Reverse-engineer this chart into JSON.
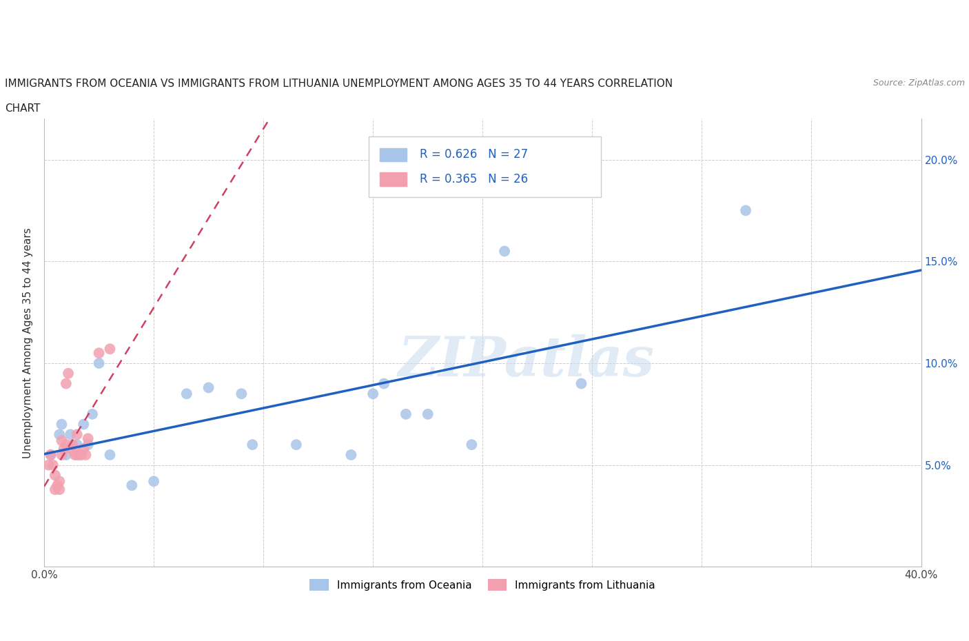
{
  "title_line1": "IMMIGRANTS FROM OCEANIA VS IMMIGRANTS FROM LITHUANIA UNEMPLOYMENT AMONG AGES 35 TO 44 YEARS CORRELATION",
  "title_line2": "CHART",
  "source": "Source: ZipAtlas.com",
  "ylabel": "Unemployment Among Ages 35 to 44 years",
  "xlim": [
    0.0,
    0.4
  ],
  "ylim": [
    0.0,
    0.22
  ],
  "xticks": [
    0.0,
    0.05,
    0.1,
    0.15,
    0.2,
    0.25,
    0.3,
    0.35,
    0.4
  ],
  "yticks": [
    0.0,
    0.05,
    0.1,
    0.15,
    0.2
  ],
  "oceania_color": "#a8c4e8",
  "lithuania_color": "#f2a0b0",
  "oceania_line_color": "#2060c0",
  "lithuania_line_color": "#d04060",
  "legend_text_color": "#2060c0",
  "oceania_r": 0.626,
  "oceania_n": 27,
  "lithuania_r": 0.365,
  "lithuania_n": 26,
  "watermark": "ZIPatlas",
  "oceania_x": [
    0.003,
    0.007,
    0.008,
    0.01,
    0.012,
    0.015,
    0.018,
    0.02,
    0.022,
    0.025,
    0.03,
    0.04,
    0.05,
    0.065,
    0.075,
    0.09,
    0.095,
    0.115,
    0.14,
    0.15,
    0.155,
    0.165,
    0.175,
    0.195,
    0.21,
    0.245,
    0.32
  ],
  "oceania_y": [
    0.055,
    0.065,
    0.07,
    0.055,
    0.065,
    0.06,
    0.07,
    0.06,
    0.075,
    0.1,
    0.055,
    0.04,
    0.042,
    0.085,
    0.088,
    0.085,
    0.06,
    0.06,
    0.055,
    0.085,
    0.09,
    0.075,
    0.075,
    0.06,
    0.155,
    0.09,
    0.175
  ],
  "lithuania_x": [
    0.002,
    0.003,
    0.004,
    0.005,
    0.005,
    0.006,
    0.007,
    0.007,
    0.008,
    0.008,
    0.009,
    0.01,
    0.01,
    0.011,
    0.012,
    0.013,
    0.014,
    0.015,
    0.015,
    0.016,
    0.017,
    0.018,
    0.019,
    0.02,
    0.025,
    0.03
  ],
  "lithuania_y": [
    0.05,
    0.055,
    0.05,
    0.045,
    0.038,
    0.04,
    0.038,
    0.042,
    0.055,
    0.062,
    0.058,
    0.06,
    0.09,
    0.095,
    0.058,
    0.06,
    0.055,
    0.055,
    0.065,
    0.055,
    0.055,
    0.058,
    0.055,
    0.063,
    0.105,
    0.107
  ]
}
